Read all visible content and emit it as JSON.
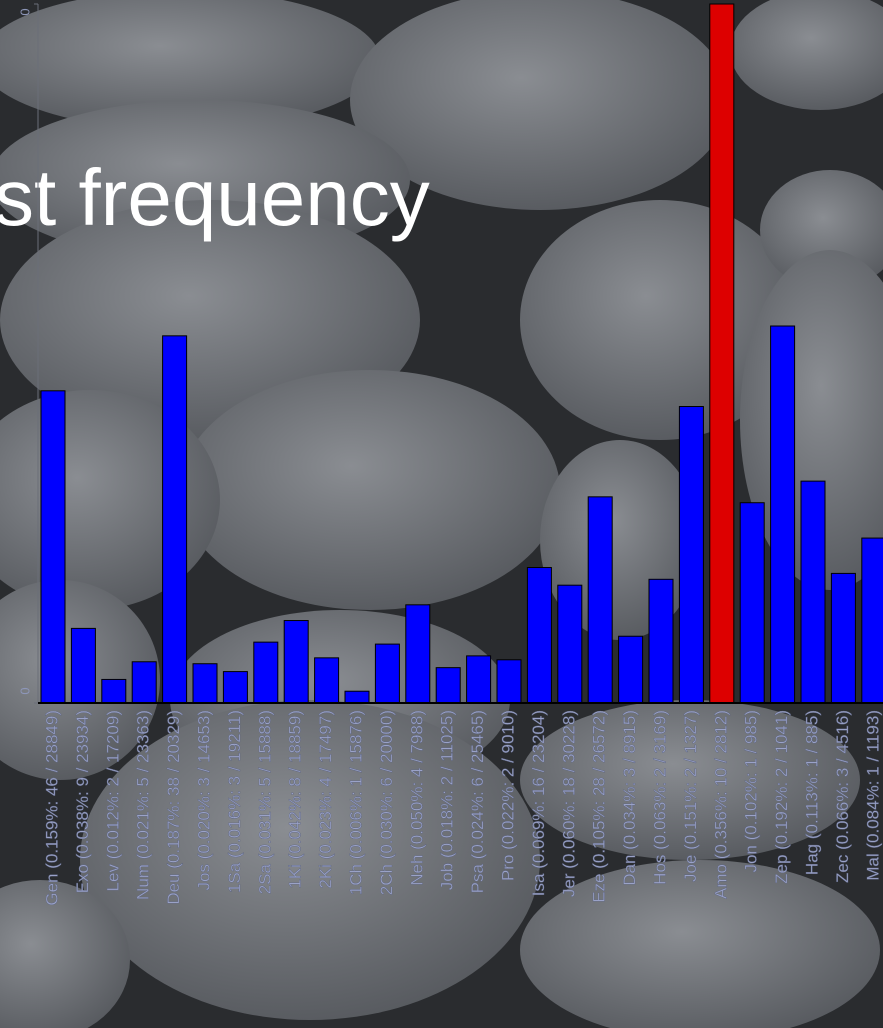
{
  "chart_data": {
    "type": "bar",
    "title": "st frequency",
    "categories": [
      "Gen (0.159%: 46 / 28849)",
      "Exo (0.038%: 9 / 23934)",
      "Lev (0.012%: 2 / 17209)",
      "Num (0.021%: 5 / 23363)",
      "Deu (0.187%: 38 / 20329)",
      "Jos (0.020%: 3 / 14653)",
      "1Sa (0.016%: 3 / 19211)",
      "2Sa (0.031%: 5 / 15888)",
      "1Ki (0.042%: 8 / 18859)",
      "2Ki (0.023%: 4 / 17497)",
      "1Ch (0.006%: 1 / 15876)",
      "2Ch (0.030%: 6 / 20000)",
      "Neh (0.050%: 4 / 7988)",
      "Job (0.018%: 2 / 11025)",
      "Psa (0.024%: 6 / 25465)",
      "Pro (0.022%: 2 / 9010)",
      "Isa (0.069%: 16 / 23204)",
      "Jer (0.060%: 18 / 30228)",
      "Eze (0.105%: 28 / 26572)",
      "Dan (0.034%: 3 / 8915)",
      "Hos (0.063%: 2 / 3169)",
      "Joe (0.151%: 2 / 1327)",
      "Amo (0.356%: 10 / 2812)",
      "Jon (0.102%: 1 / 985)",
      "Zep (0.192%: 2 / 1041)",
      "Hag (0.113%: 1 / 885)",
      "Zec (0.066%: 3 / 4516)",
      "Mal (0.084%: 1 / 1193)"
    ],
    "values": [
      0.159,
      0.038,
      0.012,
      0.021,
      0.187,
      0.02,
      0.016,
      0.031,
      0.042,
      0.023,
      0.006,
      0.03,
      0.05,
      0.018,
      0.024,
      0.022,
      0.069,
      0.06,
      0.105,
      0.034,
      0.063,
      0.151,
      0.356,
      0.102,
      0.192,
      0.113,
      0.066,
      0.084
    ],
    "colors": [
      "#0000ff",
      "#0000ff",
      "#0000ff",
      "#0000ff",
      "#0000ff",
      "#0000ff",
      "#0000ff",
      "#0000ff",
      "#0000ff",
      "#0000ff",
      "#0000ff",
      "#0000ff",
      "#0000ff",
      "#0000ff",
      "#0000ff",
      "#0000ff",
      "#0000ff",
      "#0000ff",
      "#0000ff",
      "#0000ff",
      "#0000ff",
      "#0000ff",
      "#dd0000",
      "#0000ff",
      "#0000ff",
      "#0000ff",
      "#0000ff",
      "#0000ff"
    ],
    "ylim": [
      0,
      0.356
    ],
    "yticks": [
      {
        "value": 0,
        "label": "0"
      },
      {
        "value": 0.356,
        "label": "0"
      }
    ]
  }
}
